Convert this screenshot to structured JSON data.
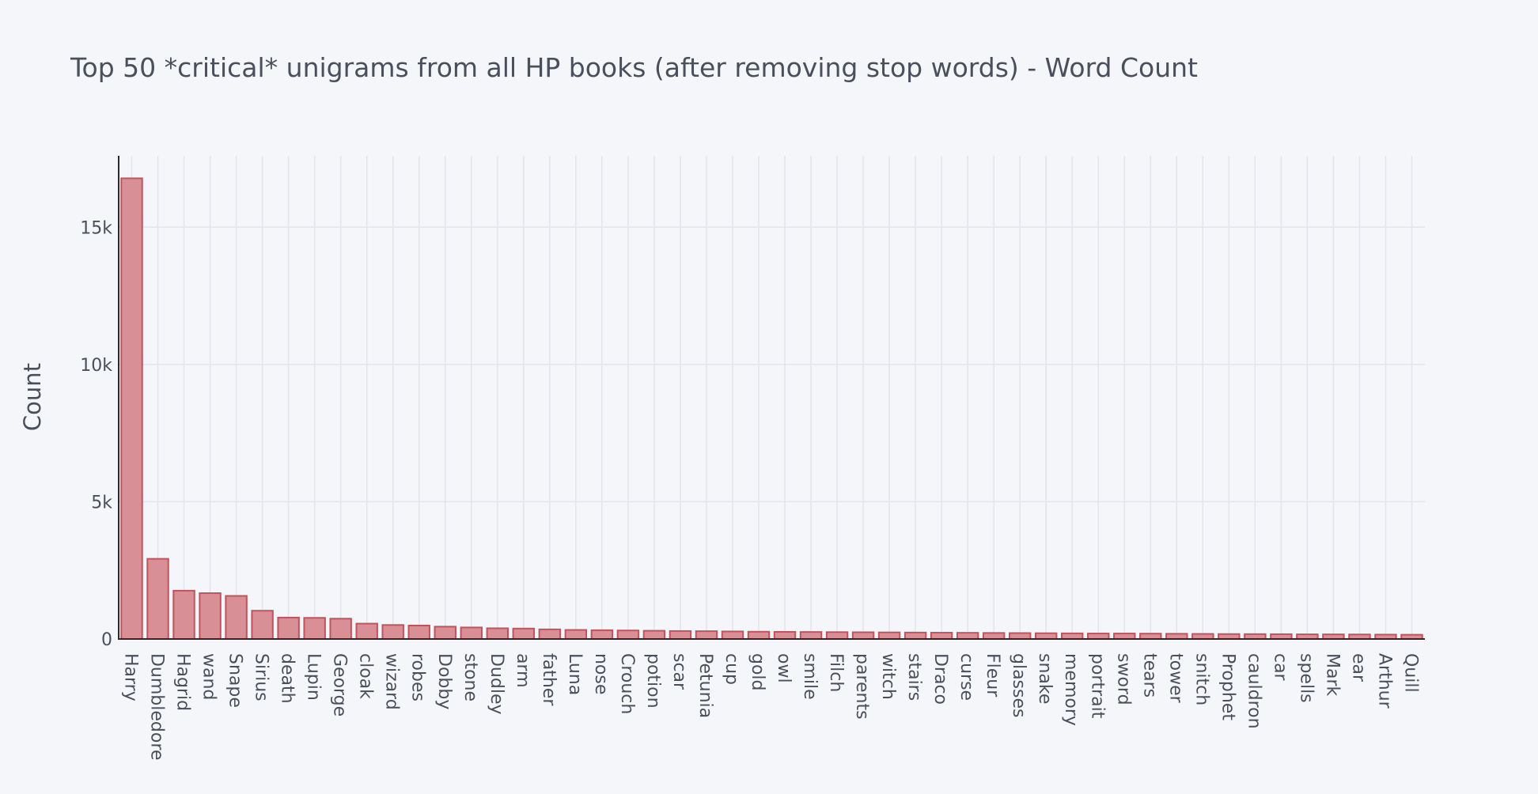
{
  "chart_data": {
    "type": "bar",
    "title": "Top 50 *critical* unigrams from all HP books (after removing stop words) - Word Count",
    "xlabel": "",
    "ylabel": "Count",
    "ylim": [
      0,
      17600
    ],
    "yticks": [
      0,
      5000,
      10000,
      15000
    ],
    "ytick_labels": [
      "0",
      "5k",
      "10k",
      "15k"
    ],
    "grid": true,
    "bar_fill": "#d88f96",
    "bar_stroke": "#c4525d",
    "background": "#f5f6fa",
    "categories": [
      "Harry",
      "Dumbledore",
      "Hagrid",
      "wand",
      "Snape",
      "Sirius",
      "death",
      "Lupin",
      "George",
      "cloak",
      "wizard",
      "robes",
      "Dobby",
      "stone",
      "Dudley",
      "arm",
      "father",
      "Luna",
      "nose",
      "Crouch",
      "potion",
      "scar",
      "Petunia",
      "cup",
      "gold",
      "owl",
      "smile",
      "Filch",
      "parents",
      "witch",
      "stairs",
      "Draco",
      "curse",
      "Fleur",
      "glasses",
      "snake",
      "memory",
      "portrait",
      "sword",
      "tears",
      "tower",
      "snitch",
      "Prophet",
      "cauldron",
      "car",
      "spells",
      "Mark",
      "ear",
      "Arthur",
      "Quill"
    ],
    "values": [
      16780,
      2920,
      1760,
      1670,
      1570,
      1030,
      780,
      770,
      740,
      560,
      510,
      490,
      450,
      420,
      390,
      380,
      350,
      330,
      320,
      310,
      300,
      290,
      285,
      275,
      265,
      260,
      255,
      250,
      245,
      240,
      235,
      230,
      225,
      220,
      215,
      210,
      205,
      200,
      200,
      195,
      190,
      185,
      180,
      178,
      175,
      170,
      168,
      165,
      160,
      155
    ]
  }
}
